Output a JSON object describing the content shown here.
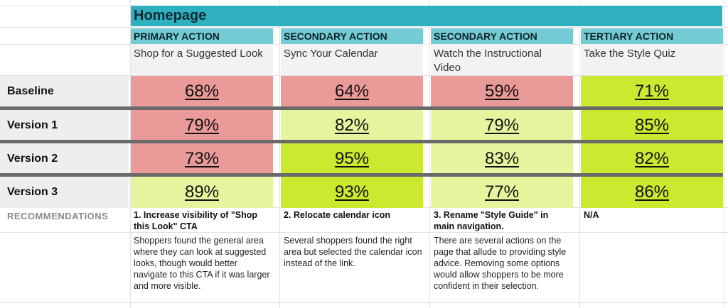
{
  "title": "Homepage",
  "columns": [
    {
      "header": "PRIMARY ACTION",
      "task": "Shop for a Suggested Look"
    },
    {
      "header": "SECONDARY ACTION",
      "task": "Sync Your Calendar"
    },
    {
      "header": "SECONDARY ACTION",
      "task": "Watch the Instructional Video"
    },
    {
      "header": "TERTIARY ACTION",
      "task": "Take the Style Quiz"
    }
  ],
  "rows": [
    {
      "label": "Baseline",
      "values": [
        "68%",
        "64%",
        "59%",
        "71%"
      ],
      "colors": [
        "#ea9a98",
        "#ea9a98",
        "#ea9a98",
        "#cde92f"
      ]
    },
    {
      "label": "Version 1",
      "values": [
        "79%",
        "82%",
        "79%",
        "85%"
      ],
      "colors": [
        "#ea9a98",
        "#e6f59d",
        "#e6f59d",
        "#cde92f"
      ]
    },
    {
      "label": "Version 2",
      "values": [
        "73%",
        "95%",
        "83%",
        "82%"
      ],
      "colors": [
        "#ea9a98",
        "#cde92f",
        "#e6f59d",
        "#cde92f"
      ]
    },
    {
      "label": "Version 3",
      "values": [
        "89%",
        "93%",
        "77%",
        "86%"
      ],
      "colors": [
        "#e6f59d",
        "#cde92f",
        "#e6f59d",
        "#cde92f"
      ]
    }
  ],
  "recommendations": {
    "label": "RECOMMENDATIONS",
    "items": [
      {
        "title": "1. Increase visibility of \"Shop this Look\" CTA",
        "description": "Shoppers found the general area where they can look at suggested looks, though would better navigate to this CTA if it was larger and more visible."
      },
      {
        "title": "2. Relocate calendar icon",
        "description": "Several shoppers found the right area but selected the calendar icon instead of the link."
      },
      {
        "title": "3. Rename \"Style Guide\" in main navigation.",
        "description": "There are several actions on the page that allude to providing style advice. Removing some options would allow shoppers to be more confident in their selection."
      },
      {
        "title": "N/A",
        "description": ""
      }
    ]
  },
  "colors": {
    "title_bar": "#2fb0bf",
    "header": "#73cbd3",
    "low": "#ea9a98",
    "mid": "#e6f59d",
    "high": "#cde92f",
    "separator": "#6a6a6a"
  }
}
